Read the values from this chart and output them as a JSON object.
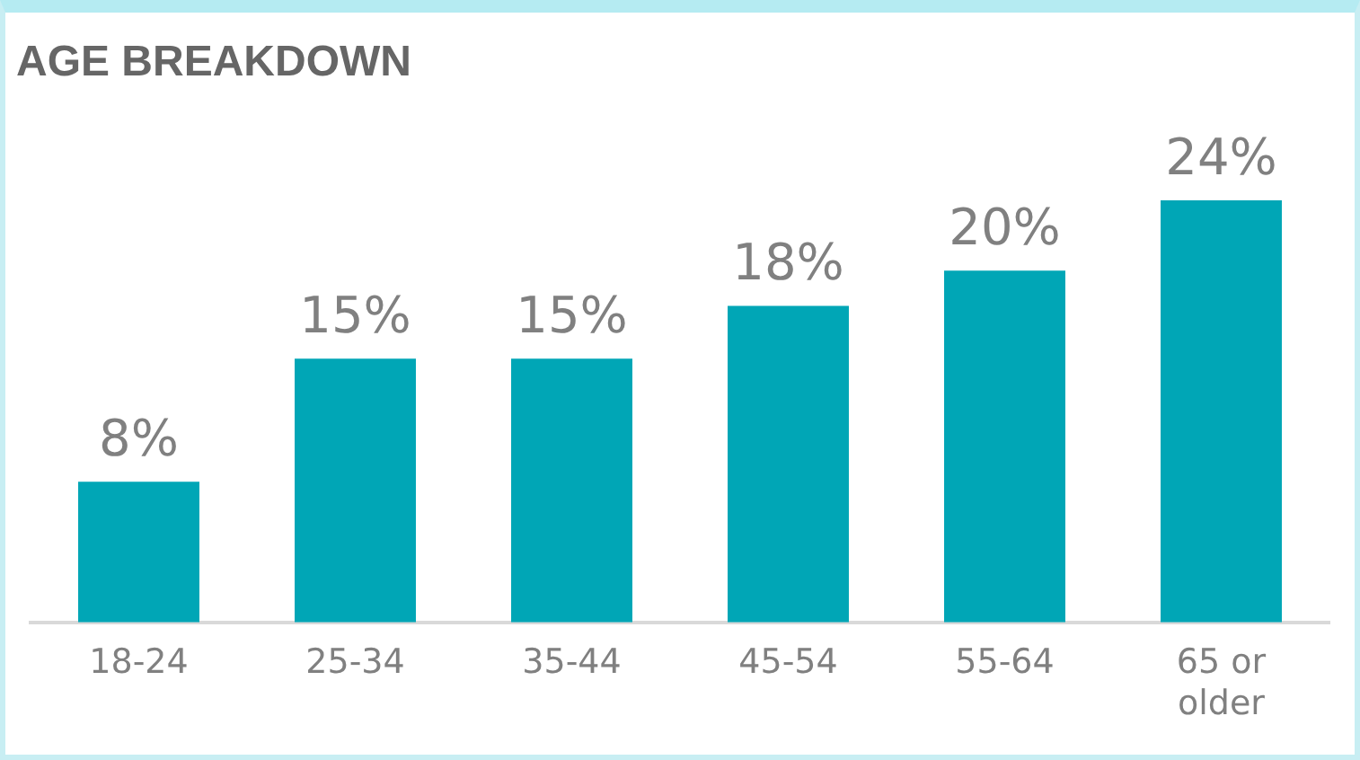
{
  "chart_data": {
    "type": "bar",
    "title": "AGE BREAKDOWN",
    "categories": [
      "18-24",
      "25-34",
      "35-44",
      "45-54",
      "55-64",
      "65 or older"
    ],
    "values": [
      8,
      15,
      15,
      18,
      20,
      24
    ],
    "color": "#00a6b6",
    "value_labels": [
      "8%",
      "15%",
      "15%",
      "18%",
      "20%",
      "24%"
    ],
    "grid": false,
    "legend": false
  }
}
